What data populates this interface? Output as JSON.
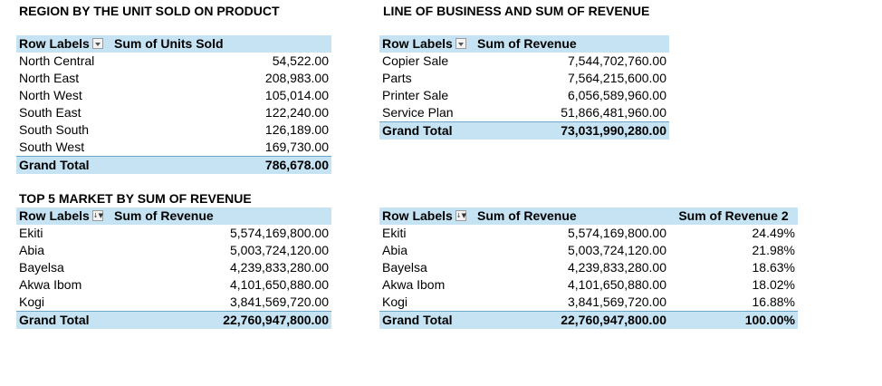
{
  "titles": {
    "t1": "REGION BY THE UNIT SOLD ON PRODUCT",
    "t2": "LINE OF BUSINESS AND SUM OF REVENUE",
    "t3": "TOP 5 MARKET BY SUM OF REVENUE"
  },
  "region_table": {
    "col1": "Row Labels",
    "col2": "Sum of Units Sold",
    "rows": [
      {
        "label": "North Central",
        "value": "54,522.00"
      },
      {
        "label": "North East",
        "value": "208,983.00"
      },
      {
        "label": "North West",
        "value": "105,014.00"
      },
      {
        "label": "South East",
        "value": "122,240.00"
      },
      {
        "label": "South South",
        "value": "126,189.00"
      },
      {
        "label": "South West",
        "value": "169,730.00"
      }
    ],
    "total_label": "Grand Total",
    "total_value": "786,678.00"
  },
  "lob_table": {
    "col1": "Row Labels",
    "col2": "Sum of Revenue",
    "rows": [
      {
        "label": "Copier Sale",
        "value": "7,544,702,760.00"
      },
      {
        "label": "Parts",
        "value": "7,564,215,600.00"
      },
      {
        "label": "Printer Sale",
        "value": "6,056,589,960.00"
      },
      {
        "label": "Service Plan",
        "value": "51,866,481,960.00"
      }
    ],
    "total_label": "Grand Total",
    "total_value": "73,031,990,280.00"
  },
  "top5_table": {
    "col1": "Row Labels",
    "col2": "Sum of Revenue",
    "rows": [
      {
        "label": "Ekiti",
        "value": "5,574,169,800.00"
      },
      {
        "label": "Abia",
        "value": "5,003,724,120.00"
      },
      {
        "label": "Bayelsa",
        "value": "4,239,833,280.00"
      },
      {
        "label": "Akwa Ibom",
        "value": "4,101,650,880.00"
      },
      {
        "label": "Kogi",
        "value": "3,841,569,720.00"
      }
    ],
    "total_label": "Grand Total",
    "total_value": "22,760,947,800.00"
  },
  "top5_pct_table": {
    "col1": "Row Labels",
    "col2": "Sum of Revenue",
    "col3": "Sum of Revenue 2",
    "rows": [
      {
        "label": "Ekiti",
        "value": "5,574,169,800.00",
        "pct": "24.49%"
      },
      {
        "label": "Abia",
        "value": "5,003,724,120.00",
        "pct": "21.98%"
      },
      {
        "label": "Bayelsa",
        "value": "4,239,833,280.00",
        "pct": "18.63%"
      },
      {
        "label": "Akwa Ibom",
        "value": "4,101,650,880.00",
        "pct": "18.02%"
      },
      {
        "label": "Kogi",
        "value": "3,841,569,720.00",
        "pct": "16.88%"
      }
    ],
    "total_label": "Grand Total",
    "total_value": "22,760,947,800.00",
    "total_pct": "100.00%"
  },
  "icons": {
    "filter_dropdown": "dropdown-arrow-icon",
    "sorted_filter": "sort-filter-icon"
  },
  "colors": {
    "header_fill": "#c5e3f3",
    "total_border": "#6ea6cc"
  }
}
